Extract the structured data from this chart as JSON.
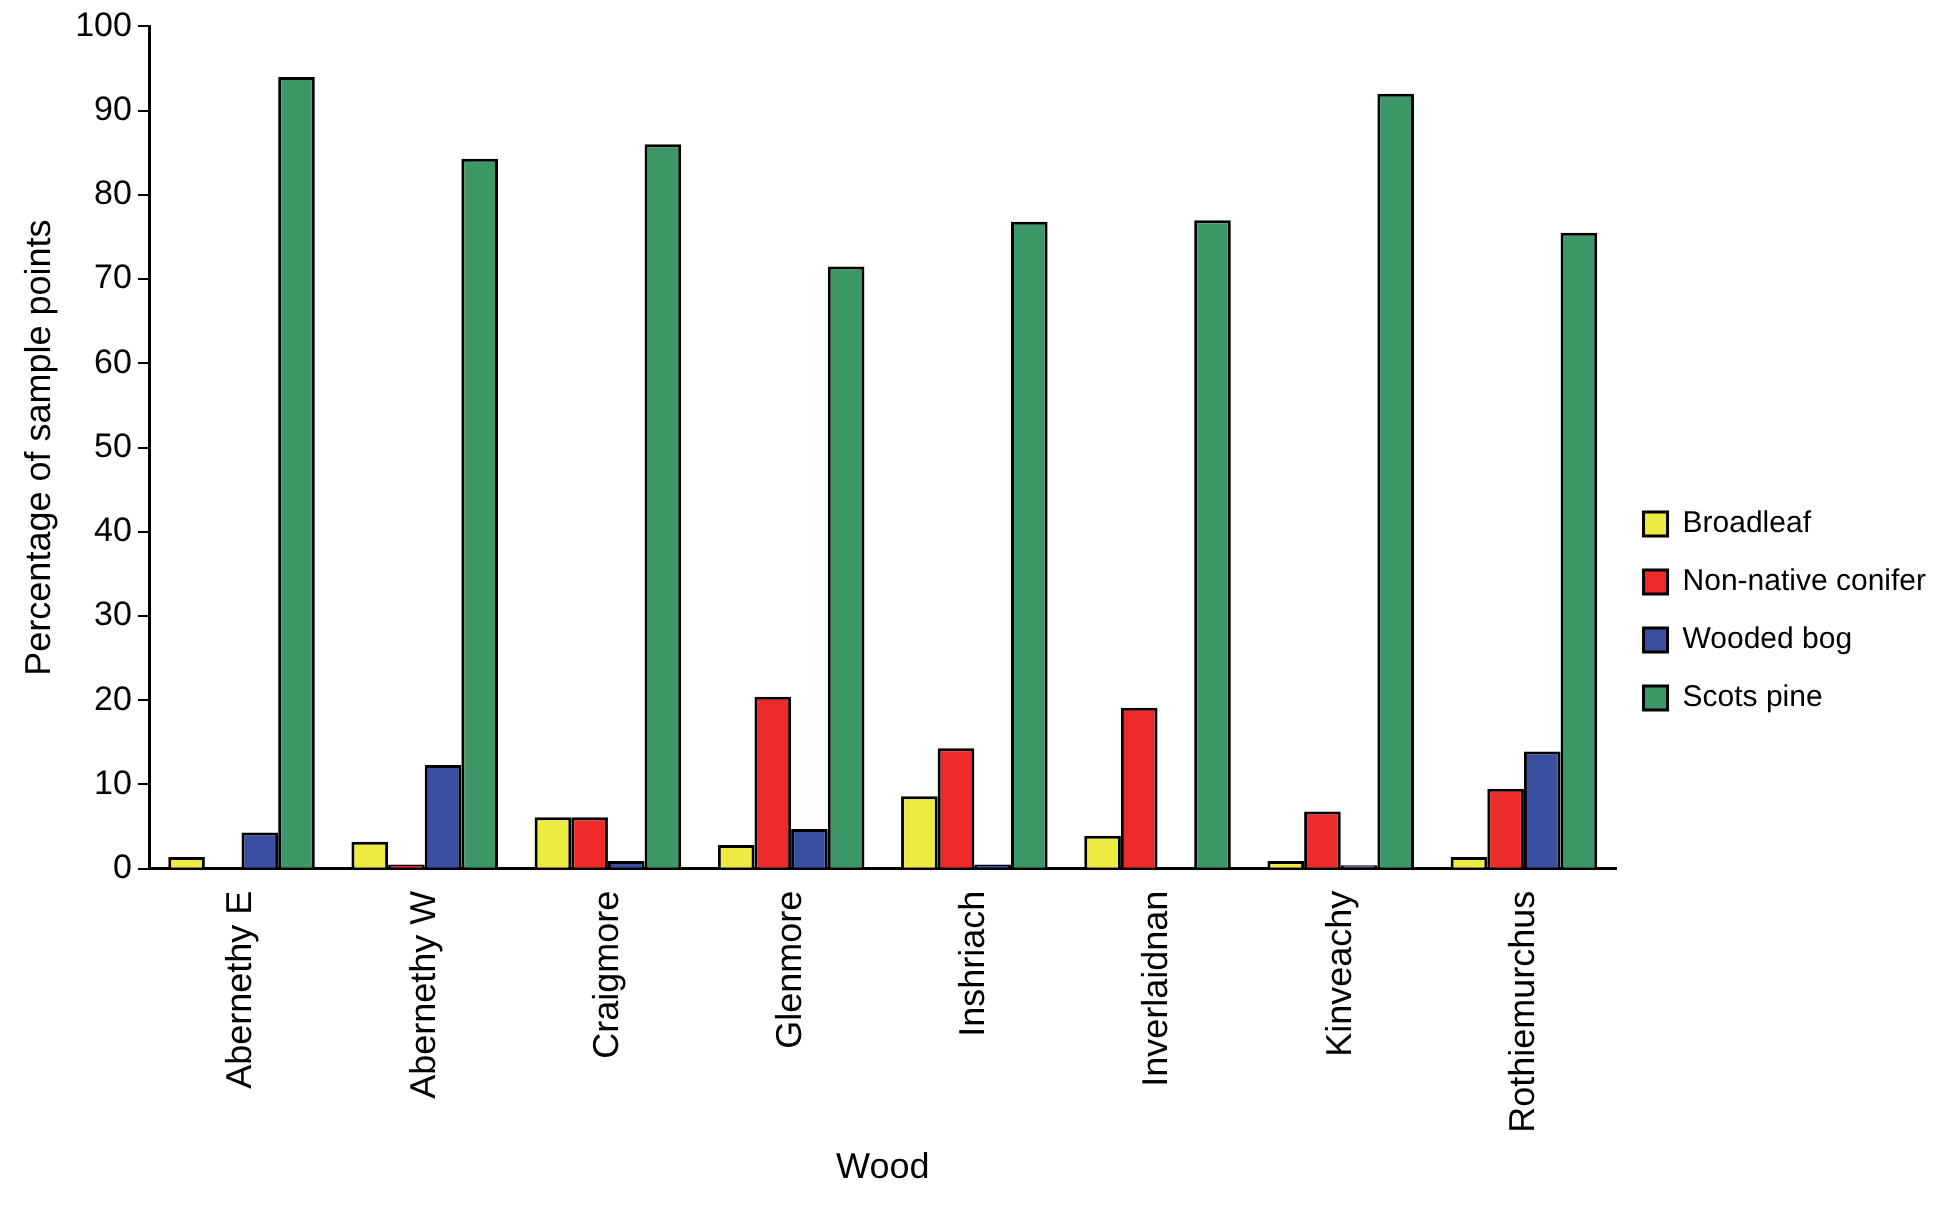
{
  "chart_data": {
    "type": "bar",
    "xlabel": "Wood",
    "ylabel": "Percentage of sample points",
    "categories": [
      "Abernethy E",
      "Abernethy W",
      "Craigmore",
      "Glenmore",
      "Inshriach",
      "Inverlaidnan",
      "Kinveachy",
      "Rothiemurchus"
    ],
    "series": [
      {
        "name": "Broadleaf",
        "color": "#eeea44",
        "values": [
          1.4,
          3.2,
          6.1,
          2.8,
          8.6,
          3.9,
          0.9,
          1.4
        ]
      },
      {
        "name": "Non-native conifer",
        "color": "#ee2a2a",
        "values": [
          0,
          0.5,
          6.1,
          20.4,
          14.3,
          19.1,
          6.8,
          9.5
        ]
      },
      {
        "name": "Wooded bog",
        "color": "#3a4fa0",
        "values": [
          4.3,
          12.3,
          0.9,
          4.7,
          0.5,
          0,
          0.4,
          13.9
        ]
      },
      {
        "name": "Scots pine",
        "color": "#3c9866",
        "values": [
          94,
          84.3,
          86,
          71.5,
          76.8,
          77,
          92,
          75.5
        ]
      }
    ],
    "ylim": [
      0,
      100
    ],
    "yticks": [
      0,
      10,
      20,
      30,
      40,
      50,
      60,
      70,
      80,
      90,
      100
    ],
    "grid": false,
    "legend": "right"
  }
}
